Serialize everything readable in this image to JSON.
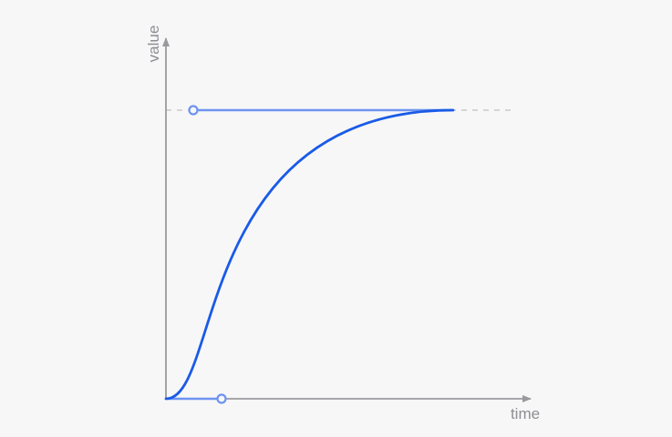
{
  "axes": {
    "x_label": "time",
    "y_label": "value"
  },
  "colors": {
    "background": "#f7f7f8",
    "axis": "#9a9a9e",
    "axis_text": "#8e8e93",
    "curve": "#1a5be6",
    "handle": "#6f93f0",
    "guide": "#c9c9cc"
  }
}
